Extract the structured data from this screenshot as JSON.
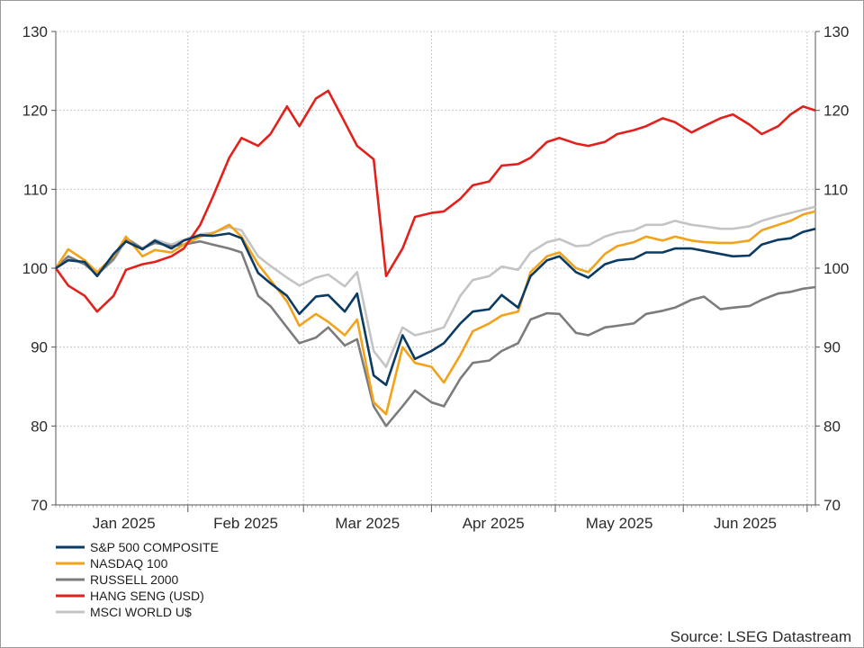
{
  "source": "Source: LSEG Datastream",
  "chart_data": {
    "type": "line",
    "ylim": [
      70,
      130
    ],
    "yticks": [
      70,
      80,
      90,
      100,
      110,
      120,
      130
    ],
    "x_ticks": [
      "Jan 2025",
      "Feb 2025",
      "Mar 2025",
      "Apr 2025",
      "May 2025",
      "Jun 2025"
    ],
    "grid": true,
    "legend_position": "bottom-left",
    "x_dates": [
      "2024-12-31",
      "2025-01-03",
      "2025-01-07",
      "2025-01-10",
      "2025-01-14",
      "2025-01-17",
      "2025-01-21",
      "2025-01-24",
      "2025-01-28",
      "2025-01-31",
      "2025-02-04",
      "2025-02-07",
      "2025-02-11",
      "2025-02-14",
      "2025-02-18",
      "2025-02-21",
      "2025-02-25",
      "2025-02-28",
      "2025-03-04",
      "2025-03-07",
      "2025-03-11",
      "2025-03-14",
      "2025-03-18",
      "2025-03-21",
      "2025-03-25",
      "2025-03-28",
      "2025-04-01",
      "2025-04-04",
      "2025-04-08",
      "2025-04-11",
      "2025-04-15",
      "2025-04-18",
      "2025-04-22",
      "2025-04-25",
      "2025-04-29",
      "2025-05-02",
      "2025-05-06",
      "2025-05-09",
      "2025-05-13",
      "2025-05-16",
      "2025-05-20",
      "2025-05-23",
      "2025-05-27",
      "2025-05-30",
      "2025-06-03",
      "2025-06-06",
      "2025-06-10",
      "2025-06-13",
      "2025-06-17",
      "2025-06-20",
      "2025-06-24",
      "2025-06-27",
      "2025-06-30",
      "2025-07-03"
    ],
    "series": [
      {
        "name": "S&P 500 COMPOSITE",
        "color": "#0b3a63",
        "values": [
          100,
          101.0,
          100.8,
          99.0,
          101.8,
          103.4,
          102.4,
          103.5,
          102.5,
          103.5,
          104.2,
          104.1,
          104.4,
          103.8,
          99.4,
          98.1,
          96.5,
          94.2,
          96.4,
          96.6,
          94.5,
          96.8,
          86.4,
          85.2,
          91.5,
          88.5,
          89.5,
          90.5,
          93.0,
          94.5,
          94.8,
          96.6,
          95.0,
          99.0,
          101.0,
          101.5,
          99.5,
          98.8,
          100.5,
          101.0,
          101.2,
          102.0,
          102.0,
          102.5,
          102.5,
          102.2,
          101.8,
          101.5,
          101.6,
          103.0,
          103.6,
          103.8,
          104.6,
          105.0
        ]
      },
      {
        "name": "NASDAQ 100",
        "color": "#f2a21b",
        "values": [
          100,
          102.4,
          101.0,
          99.5,
          101.5,
          104.0,
          101.5,
          102.3,
          102.0,
          103.0,
          104.0,
          104.4,
          105.5,
          104.0,
          100.5,
          98.5,
          95.8,
          92.7,
          94.2,
          93.2,
          91.5,
          93.5,
          83.0,
          81.5,
          90.0,
          88.0,
          87.5,
          85.5,
          89.0,
          92.0,
          93.0,
          94.0,
          94.5,
          99.5,
          101.5,
          102.0,
          100.0,
          99.5,
          101.8,
          102.8,
          103.3,
          104.0,
          103.5,
          104.0,
          103.5,
          103.3,
          103.2,
          103.2,
          103.5,
          104.8,
          105.5,
          106.0,
          106.8,
          107.2
        ]
      },
      {
        "name": "RUSSELL 2000",
        "color": "#7c7c7c",
        "values": [
          100,
          101.5,
          100.5,
          99.2,
          101.2,
          103.8,
          102.5,
          103.2,
          102.8,
          103.0,
          103.4,
          103.0,
          102.5,
          102.0,
          96.5,
          95.2,
          92.5,
          90.5,
          91.2,
          92.5,
          90.2,
          91.0,
          82.5,
          80.0,
          82.5,
          84.5,
          83.0,
          82.5,
          86.0,
          88.0,
          88.3,
          89.5,
          90.5,
          93.5,
          94.3,
          94.2,
          91.8,
          91.5,
          92.5,
          92.7,
          93.0,
          94.2,
          94.6,
          95.0,
          96.0,
          96.4,
          94.8,
          95.0,
          95.2,
          96.0,
          96.8,
          97.0,
          97.4,
          97.6
        ]
      },
      {
        "name": "HANG SENG (USD)",
        "color": "#e3201b",
        "values": [
          100,
          97.8,
          96.5,
          94.5,
          96.5,
          99.8,
          100.5,
          100.8,
          101.5,
          102.5,
          105.5,
          109.0,
          114.0,
          116.5,
          115.5,
          117.0,
          120.5,
          118.0,
          121.5,
          122.5,
          118.5,
          115.5,
          113.8,
          99.0,
          102.5,
          106.5,
          107.0,
          107.2,
          108.8,
          110.5,
          111.0,
          113.0,
          113.2,
          114.0,
          116.0,
          116.5,
          115.8,
          115.5,
          116.0,
          117.0,
          117.5,
          118.0,
          119.0,
          118.5,
          117.2,
          118.0,
          119.0,
          119.5,
          118.2,
          117.0,
          118.0,
          119.5,
          120.5,
          120.0
        ]
      },
      {
        "name": "MSCI WORLD U$",
        "color": "#c4c4c4",
        "values": [
          100,
          101.2,
          100.5,
          99.2,
          101.0,
          103.5,
          102.5,
          103.6,
          103.0,
          103.6,
          104.3,
          104.5,
          105.2,
          104.8,
          101.5,
          100.3,
          98.8,
          97.8,
          98.8,
          99.2,
          97.7,
          99.5,
          89.5,
          87.5,
          92.5,
          91.5,
          92.0,
          92.5,
          96.5,
          98.5,
          99.0,
          100.2,
          99.8,
          102.0,
          103.3,
          103.7,
          102.8,
          102.9,
          104.0,
          104.5,
          104.8,
          105.5,
          105.5,
          106.0,
          105.5,
          105.3,
          105.0,
          105.0,
          105.3,
          106.0,
          106.6,
          107.0,
          107.4,
          107.8
        ]
      }
    ]
  }
}
